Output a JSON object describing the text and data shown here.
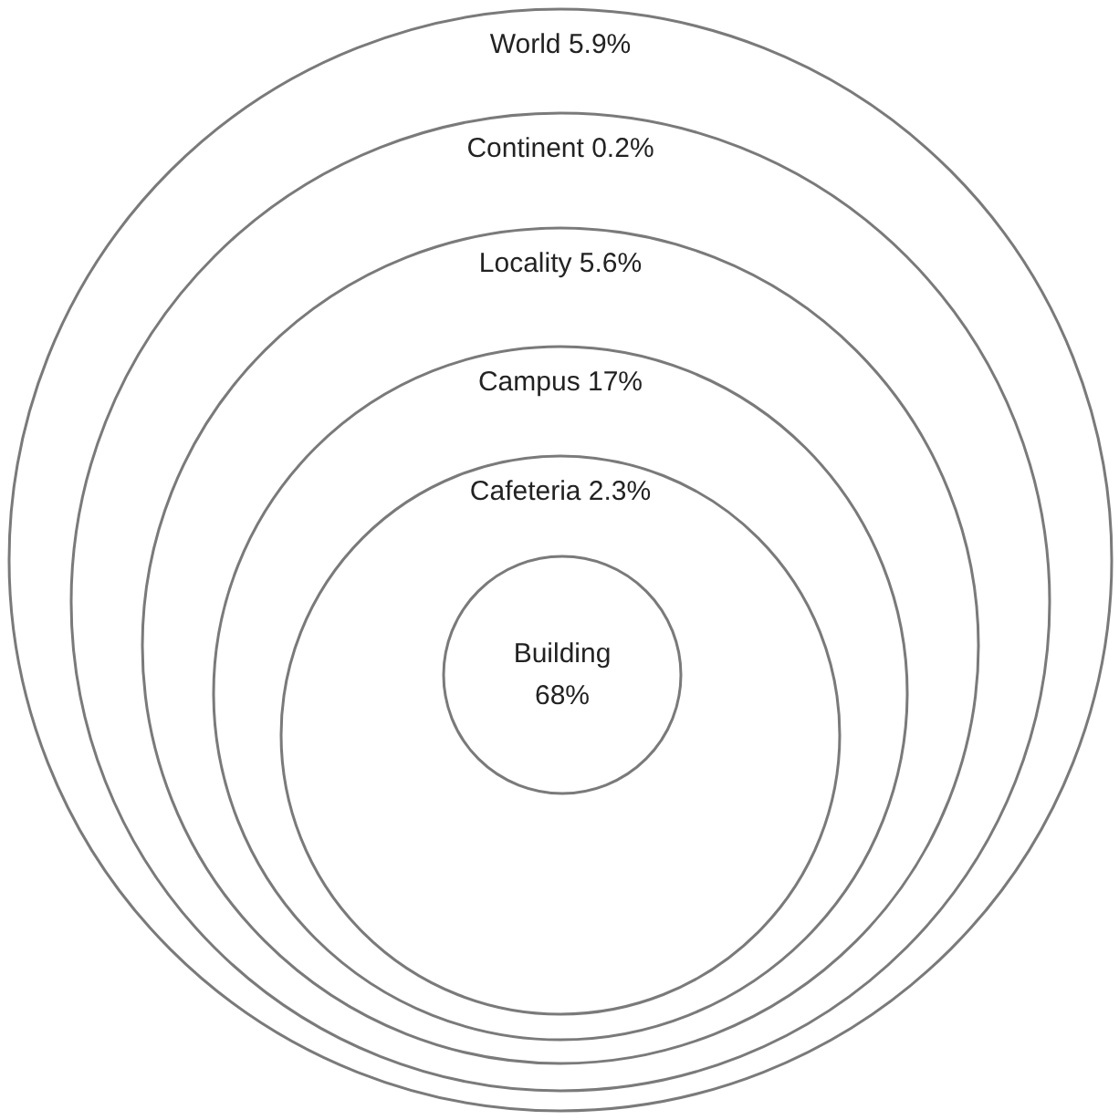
{
  "chart_data": {
    "type": "other",
    "categories": [
      "World",
      "Continent",
      "Locality",
      "Campus",
      "Cafeteria",
      "Building"
    ],
    "values": [
      5.9,
      0.2,
      5.6,
      17,
      2.3,
      68
    ],
    "value_labels": [
      "5.9%",
      "0.2%",
      "5.6%",
      "17%",
      "2.3%",
      "68%"
    ]
  }
}
